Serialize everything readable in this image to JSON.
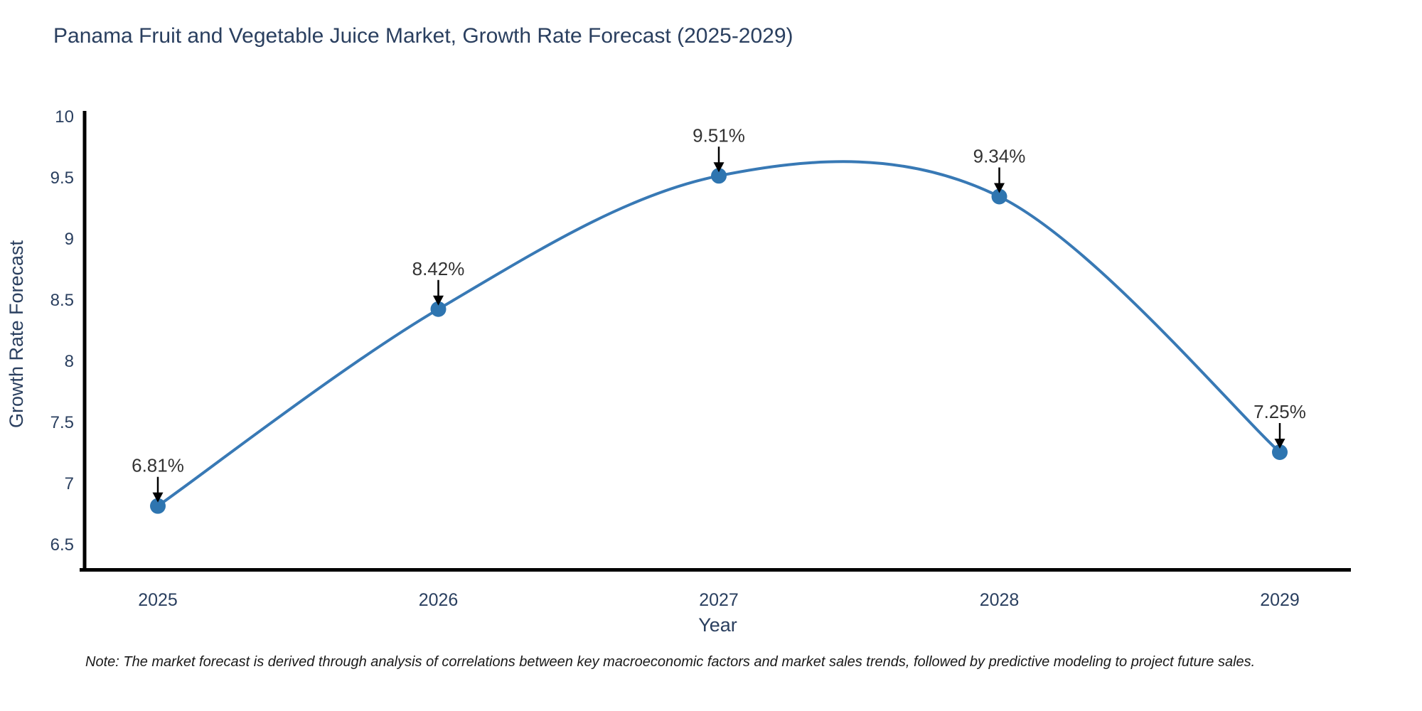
{
  "title": "Panama Fruit and Vegetable Juice Market, Growth Rate Forecast (2025-2029)",
  "note": "Note: The market forecast is derived through analysis of correlations between key macroeconomic factors and market sales trends, followed by predictive modeling to project future sales.",
  "chart_data": {
    "type": "line",
    "line_shape": "spline",
    "title": "Panama Fruit and Vegetable Juice Market, Growth Rate Forecast (2025-2029)",
    "x": [
      2025,
      2026,
      2027,
      2028,
      2029
    ],
    "x_tick_labels": [
      "2025",
      "2026",
      "2027",
      "2028",
      "2029"
    ],
    "values": [
      6.81,
      8.42,
      9.51,
      9.34,
      7.25
    ],
    "point_labels": [
      "6.81%",
      "8.42%",
      "9.51%",
      "9.34%",
      "7.25%"
    ],
    "xlabel": "Year",
    "ylabel": "Growth Rate Forecast",
    "y_ticks": [
      10,
      9.5,
      9,
      8.5,
      8,
      7.5,
      7,
      6.5
    ],
    "ylim": [
      6.27,
      10.03
    ],
    "grid": false,
    "legend": "none",
    "annotations": "value labels with downward arrows at each data point",
    "colors": {
      "line": "#3879b5",
      "marker": "#2e75b0",
      "axis": "#000000",
      "axis_text": "#2a3f5f",
      "annotation_text": "#333333",
      "background": "#ffffff"
    }
  }
}
